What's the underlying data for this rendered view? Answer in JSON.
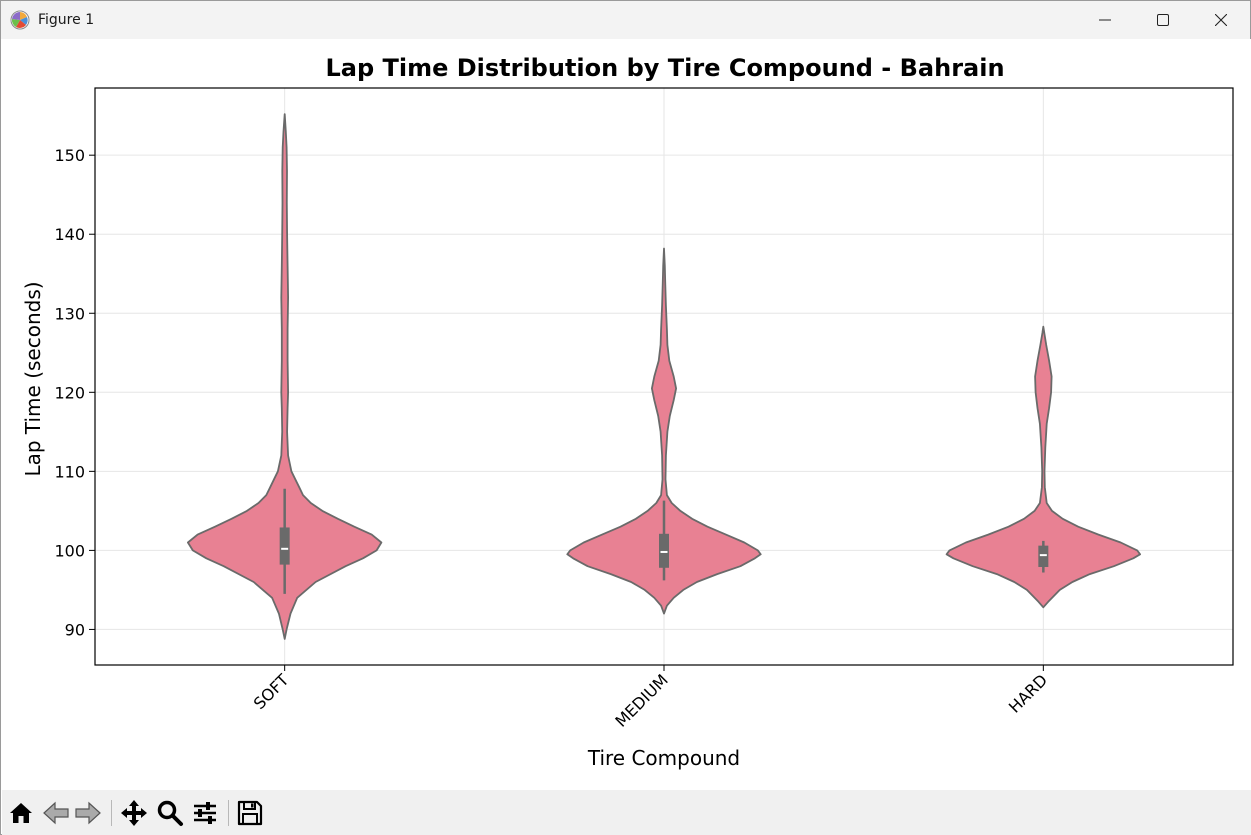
{
  "window": {
    "title": "Figure 1"
  },
  "colors": {
    "violin_fill": "#e88193",
    "violin_edge": "#6a6a6a",
    "box": "#6a6a6a",
    "median": "#ffffff",
    "grid": "#e6e6e6",
    "toolbar_bg": "#f0f0f0"
  },
  "toolbar": {
    "icons": [
      "home-icon",
      "back-arrow-icon",
      "forward-arrow-icon",
      "pan-icon",
      "zoom-icon",
      "configure-subplots-icon",
      "save-icon"
    ]
  },
  "chart_data": {
    "type": "violin",
    "title": "Lap Time Distribution by Tire Compound - Bahrain",
    "xlabel": "Tire Compound",
    "ylabel": "Lap Time (seconds)",
    "categories": [
      "SOFT",
      "MEDIUM",
      "HARD"
    ],
    "ylim": [
      85.5,
      158.5
    ],
    "yticks": [
      90,
      100,
      110,
      120,
      130,
      140,
      150
    ],
    "grid": true,
    "violins": [
      {
        "category": "SOFT",
        "min": 88.8,
        "max": 155.2,
        "q1": 98.2,
        "median": 100.2,
        "q3": 102.9,
        "whisker_low": 94.5,
        "whisker_high": 107.8,
        "profile": [
          [
            88.8,
            0
          ],
          [
            90,
            0.02
          ],
          [
            92,
            0.06
          ],
          [
            94,
            0.13
          ],
          [
            96,
            0.32
          ],
          [
            98,
            0.63
          ],
          [
            99,
            0.81
          ],
          [
            100,
            0.95
          ],
          [
            101,
            1
          ],
          [
            102,
            0.9
          ],
          [
            103,
            0.72
          ],
          [
            104,
            0.55
          ],
          [
            105,
            0.39
          ],
          [
            106,
            0.27
          ],
          [
            107,
            0.19
          ],
          [
            108,
            0.15
          ],
          [
            109,
            0.11
          ],
          [
            110,
            0.07
          ],
          [
            112,
            0.035
          ],
          [
            115,
            0.025
          ],
          [
            118,
            0.03
          ],
          [
            120,
            0.035
          ],
          [
            124,
            0.03
          ],
          [
            128,
            0.03
          ],
          [
            132,
            0.035
          ],
          [
            136,
            0.03
          ],
          [
            140,
            0.025
          ],
          [
            144,
            0.022
          ],
          [
            148,
            0.024
          ],
          [
            151,
            0.02
          ],
          [
            153,
            0.012
          ],
          [
            155.2,
            0
          ]
        ]
      },
      {
        "category": "MEDIUM",
        "min": 92.0,
        "max": 138.2,
        "q1": 97.8,
        "median": 99.8,
        "q3": 102.1,
        "whisker_low": 96.2,
        "whisker_high": 106.3,
        "profile": [
          [
            92,
            0
          ],
          [
            93,
            0.03
          ],
          [
            94,
            0.1
          ],
          [
            95,
            0.2
          ],
          [
            96,
            0.34
          ],
          [
            97,
            0.55
          ],
          [
            98,
            0.79
          ],
          [
            99,
            0.94
          ],
          [
            99.5,
            1
          ],
          [
            100,
            0.97
          ],
          [
            101,
            0.83
          ],
          [
            102,
            0.64
          ],
          [
            103,
            0.45
          ],
          [
            104,
            0.29
          ],
          [
            105,
            0.17
          ],
          [
            106,
            0.08
          ],
          [
            107,
            0.03
          ],
          [
            109,
            0.015
          ],
          [
            112,
            0.02
          ],
          [
            115,
            0.035
          ],
          [
            117,
            0.06
          ],
          [
            119,
            0.1
          ],
          [
            120.5,
            0.125
          ],
          [
            122,
            0.1
          ],
          [
            124,
            0.055
          ],
          [
            126,
            0.035
          ],
          [
            128,
            0.03
          ],
          [
            131,
            0.02
          ],
          [
            134,
            0.012
          ],
          [
            136,
            0.008
          ],
          [
            138.2,
            0
          ]
        ]
      },
      {
        "category": "HARD",
        "min": 92.8,
        "max": 128.3,
        "q1": 97.9,
        "median": 99.4,
        "q3": 100.6,
        "whisker_low": 97.2,
        "whisker_high": 101.2,
        "profile": [
          [
            92.8,
            0
          ],
          [
            93.5,
            0.05
          ],
          [
            95,
            0.17
          ],
          [
            96,
            0.3
          ],
          [
            97,
            0.48
          ],
          [
            98,
            0.73
          ],
          [
            99,
            0.93
          ],
          [
            99.5,
            1
          ],
          [
            100,
            0.97
          ],
          [
            101,
            0.8
          ],
          [
            102,
            0.57
          ],
          [
            103,
            0.36
          ],
          [
            104,
            0.2
          ],
          [
            105,
            0.09
          ],
          [
            106,
            0.035
          ],
          [
            108,
            0.015
          ],
          [
            110,
            0.012
          ],
          [
            113,
            0.02
          ],
          [
            116,
            0.035
          ],
          [
            118,
            0.06
          ],
          [
            120,
            0.08
          ],
          [
            122,
            0.085
          ],
          [
            124,
            0.06
          ],
          [
            126,
            0.03
          ],
          [
            127.5,
            0.01
          ],
          [
            128.3,
            0
          ]
        ]
      }
    ]
  }
}
